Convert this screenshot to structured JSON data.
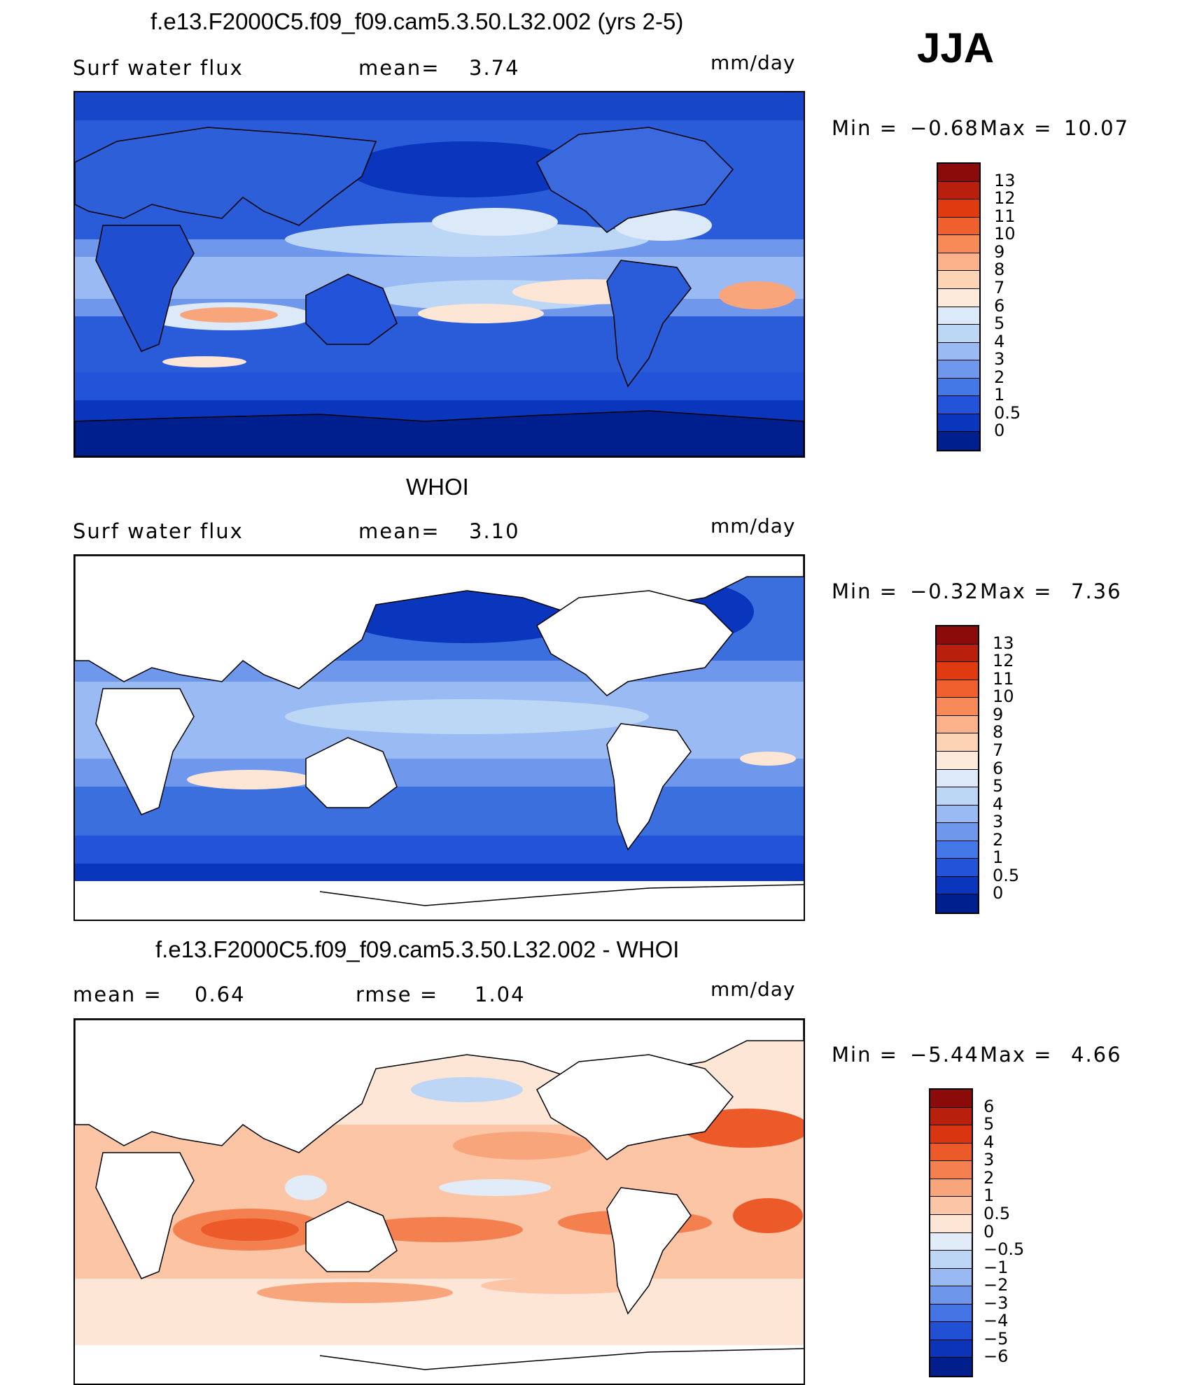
{
  "season": "JJA",
  "panels": [
    {
      "id": "model",
      "title": "f.e13.F2000C5.f09_f09.cam5.3.50.L32.002 (yrs 2-5)",
      "left_label": "Surf water flux",
      "mid_label": "mean=",
      "mid_value": "3.74",
      "units": "mm/day",
      "min_label": "Min =",
      "min_value": "−0.68",
      "max_label": "Max =",
      "max_value": "10.07",
      "colorbar": {
        "labels": [
          "13",
          "12",
          "11",
          "10",
          "9",
          "8",
          "7",
          "6",
          "5",
          "4",
          "3",
          "2",
          "1",
          "0.5",
          "0"
        ],
        "colors": [
          "#8b0a0a",
          "#b81f0c",
          "#e03a10",
          "#f0602e",
          "#f88a58",
          "#fbb18a",
          "#fdd3b6",
          "#fdeadb",
          "#dbe9f8",
          "#bcd6f6",
          "#99baf2",
          "#6f98ec",
          "#4478e6",
          "#2253d8",
          "#0a35bd",
          "#001f8f"
        ]
      }
    },
    {
      "id": "obs",
      "title": "WHOI",
      "left_label": "Surf water flux",
      "mid_label": "mean=",
      "mid_value": "3.10",
      "units": "mm/day",
      "min_label": "Min =",
      "min_value": "−0.32",
      "max_label": "Max =",
      "max_value": "7.36",
      "colorbar": {
        "labels": [
          "13",
          "12",
          "11",
          "10",
          "9",
          "8",
          "7",
          "6",
          "5",
          "4",
          "3",
          "2",
          "1",
          "0.5",
          "0"
        ],
        "colors": [
          "#8b0a0a",
          "#b81f0c",
          "#e03a10",
          "#f0602e",
          "#f88a58",
          "#fbb18a",
          "#fdd3b6",
          "#fdeadb",
          "#dbe9f8",
          "#bcd6f6",
          "#99baf2",
          "#6f98ec",
          "#4478e6",
          "#2253d8",
          "#0a35bd",
          "#001f8f"
        ]
      }
    },
    {
      "id": "diff",
      "title": "f.e13.F2000C5.f09_f09.cam5.3.50.L32.002 - WHOI",
      "left_label": "mean =",
      "left_value": "0.64",
      "mid_label": "rmse =",
      "mid_value": "1.04",
      "units": "mm/day",
      "min_label": "Min =",
      "min_value": "−5.44",
      "max_label": "Max =",
      "max_value": "4.66",
      "colorbar": {
        "labels": [
          "6",
          "5",
          "4",
          "3",
          "2",
          "1",
          "0.5",
          "0",
          "−0.5",
          "−1",
          "−2",
          "−3",
          "−4",
          "−5",
          "−6"
        ],
        "colors": [
          "#8b0a0a",
          "#b81f0c",
          "#d93510",
          "#ec5a2a",
          "#f5804f",
          "#f9a57c",
          "#fcc6a6",
          "#fde6d6",
          "#e2ecf9",
          "#bed6f5",
          "#98b9f1",
          "#6e96ea",
          "#4473e3",
          "#2150d5",
          "#0b34b8",
          "#001f8c"
        ]
      }
    }
  ],
  "colors": {
    "ocean_model_base": "#2f62dc",
    "ocean_obs_base": "#3b6fde",
    "diff_base": "#fcd7bf",
    "land_white": "#ffffff"
  }
}
